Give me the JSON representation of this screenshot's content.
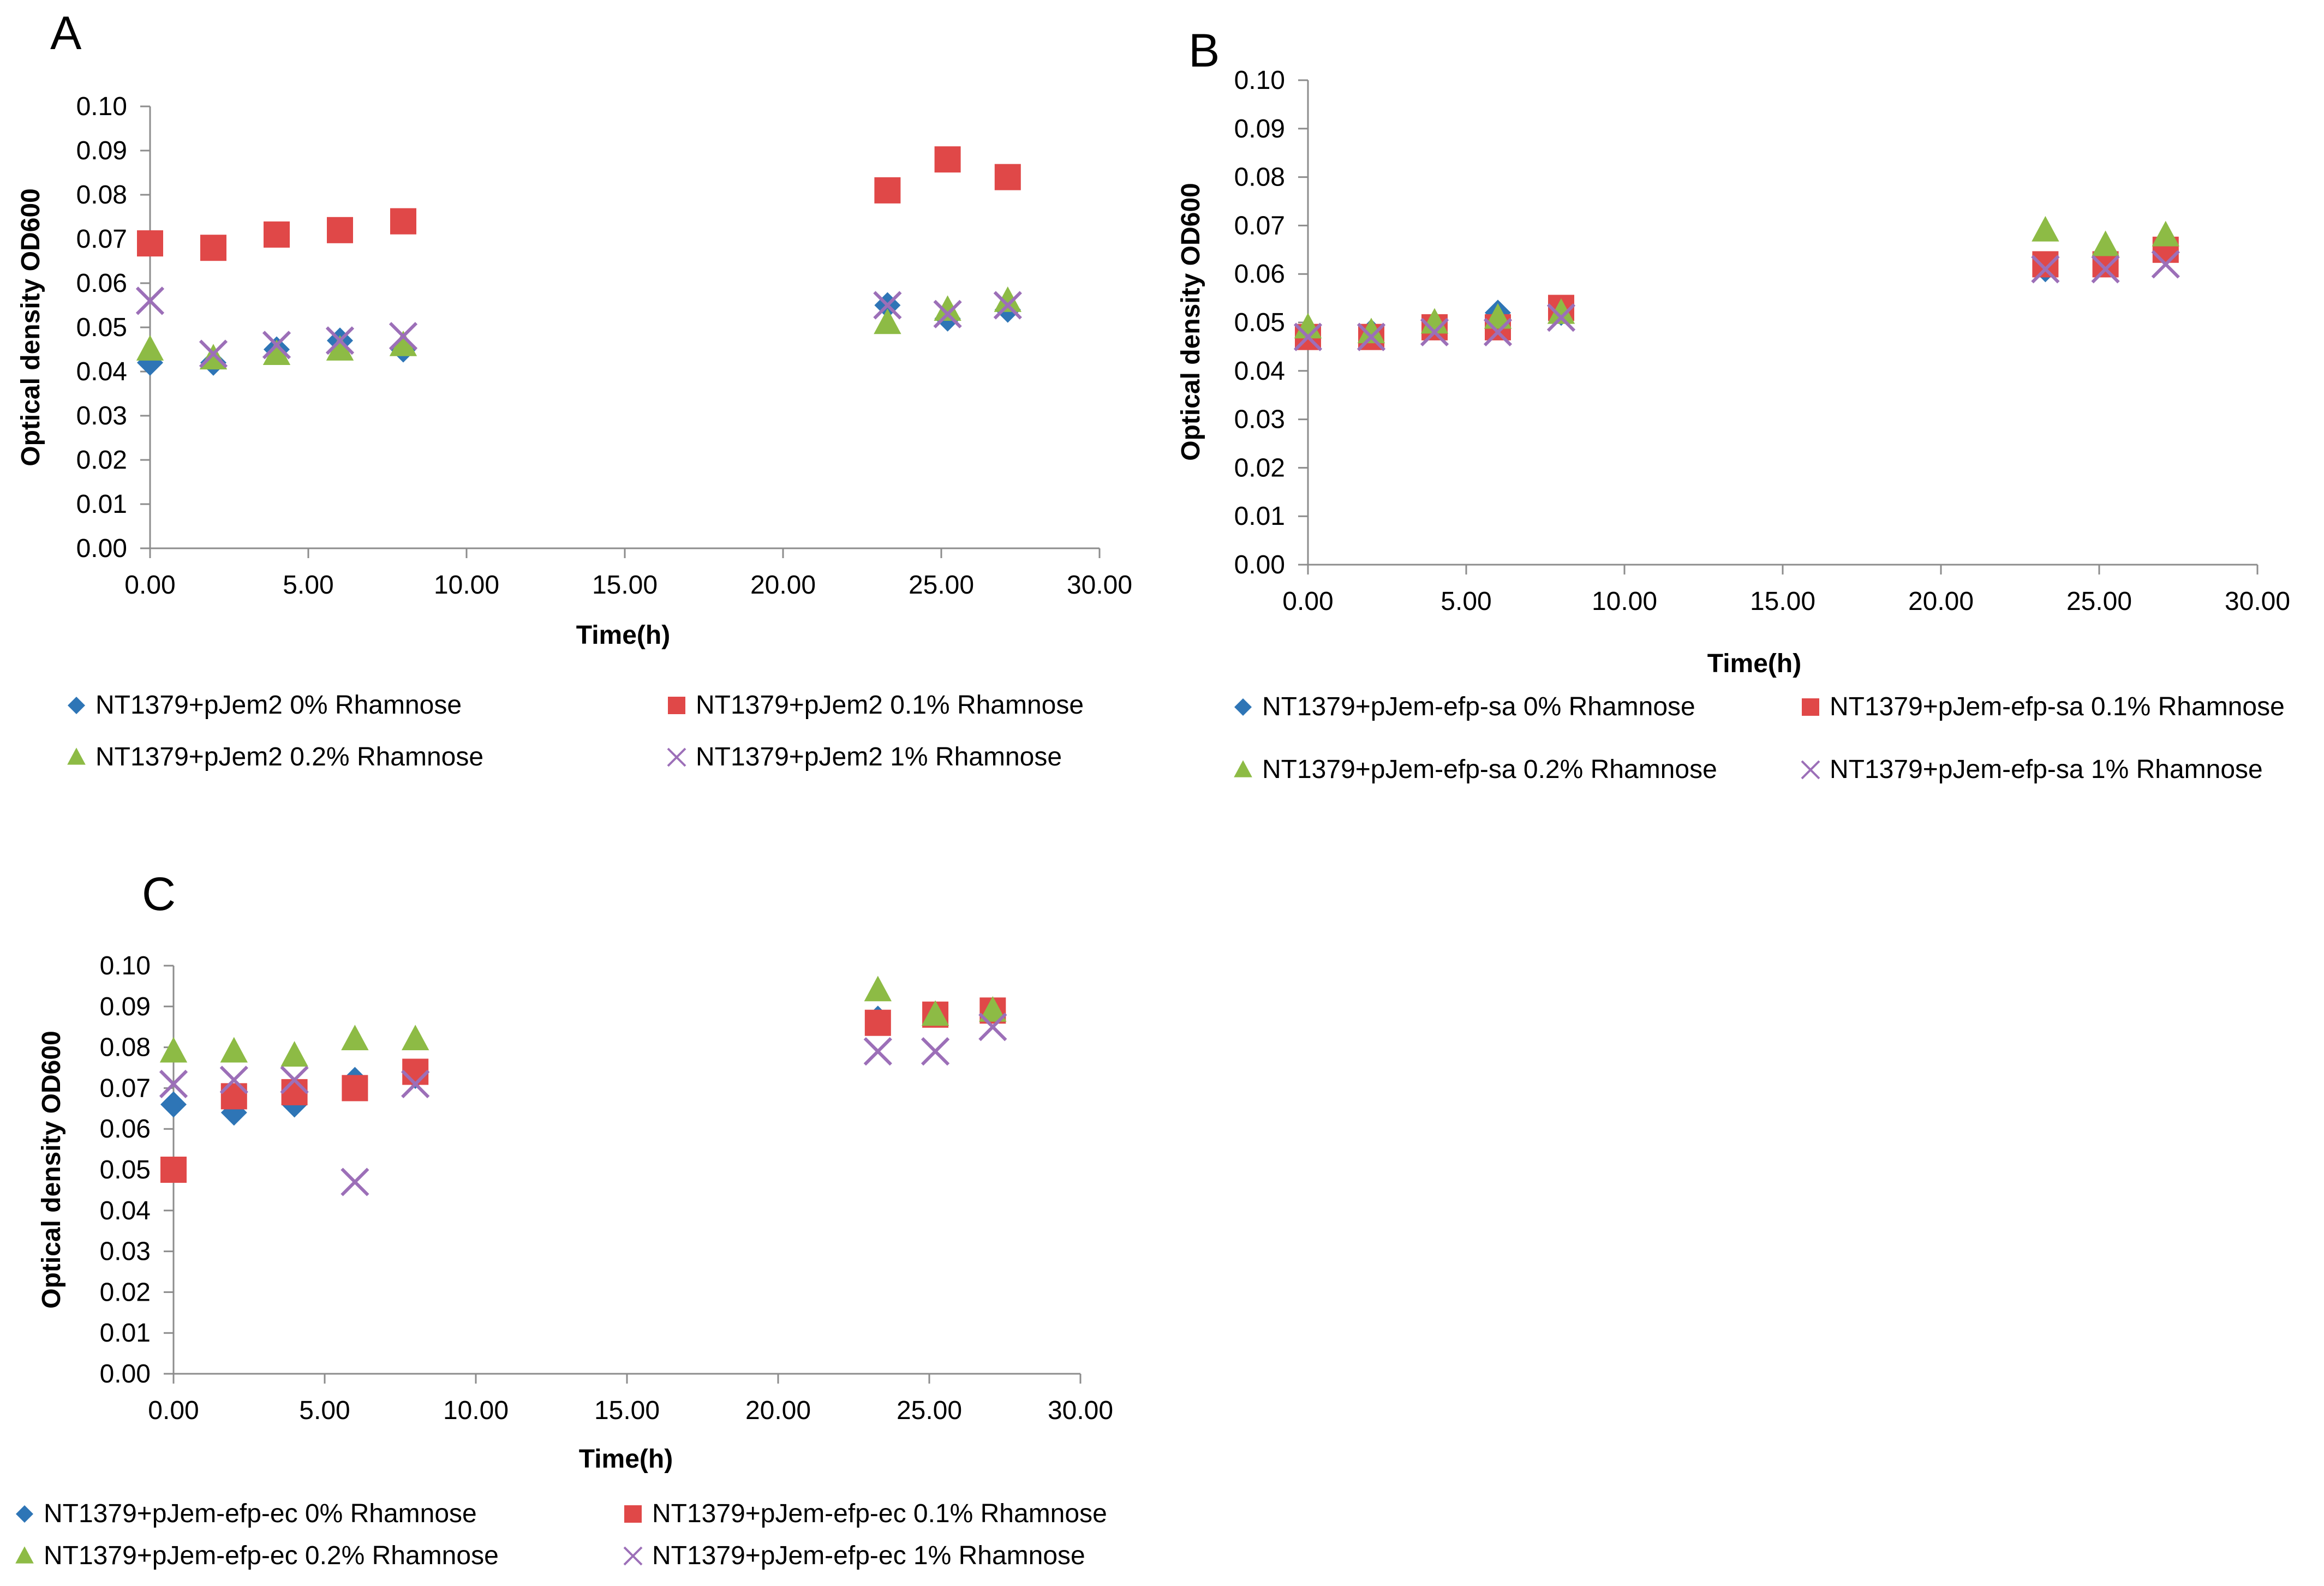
{
  "chart_data": [
    {
      "type": "scatter",
      "panel_label": "A",
      "xlabel": "Time(h)",
      "ylabel": "Optical density OD600",
      "xlim": [
        0,
        30
      ],
      "xstep": 5,
      "ylim": [
        0,
        0.1
      ],
      "ystep": 0.01,
      "x_tick_labels": [
        "0.00",
        "5.00",
        "10.00",
        "15.00",
        "20.00",
        "25.00",
        "30.00"
      ],
      "y_tick_labels": [
        "0.00",
        "0.01",
        "0.02",
        "0.03",
        "0.04",
        "0.05",
        "0.06",
        "0.07",
        "0.08",
        "0.09",
        "0.10"
      ],
      "x": [
        0,
        2,
        4,
        6,
        8,
        23.3,
        25.2,
        27.1
      ],
      "series": [
        {
          "name": "NT1379+pJem2 0% Rhamnose",
          "marker": "diamond",
          "color": "#2E75B6",
          "values": [
            0.042,
            0.042,
            0.045,
            0.047,
            0.045,
            0.055,
            0.052,
            0.054
          ]
        },
        {
          "name": "NT1379+pJem2 0.1% Rhamnose",
          "marker": "square",
          "color": "#E04848",
          "values": [
            0.069,
            0.068,
            0.071,
            0.072,
            0.074,
            0.081,
            0.088,
            0.084
          ]
        },
        {
          "name": "NT1379+pJem2 0.2% Rhamnose",
          "marker": "triangle",
          "color": "#8DBB45",
          "values": [
            0.045,
            0.043,
            0.044,
            0.045,
            0.046,
            0.051,
            0.054,
            0.056
          ]
        },
        {
          "name": "NT1379+pJem2 1% Rhamnose",
          "marker": "x",
          "color": "#9C6FB8",
          "values": [
            0.056,
            0.044,
            0.046,
            0.047,
            0.048,
            0.055,
            0.053,
            0.055
          ]
        }
      ]
    },
    {
      "type": "scatter",
      "panel_label": "B",
      "xlabel": "Time(h)",
      "ylabel": "Optical density OD600",
      "xlim": [
        0,
        30
      ],
      "xstep": 5,
      "ylim": [
        0,
        0.1
      ],
      "ystep": 0.01,
      "x_tick_labels": [
        "0.00",
        "5.00",
        "10.00",
        "15.00",
        "20.00",
        "25.00",
        "30.00"
      ],
      "y_tick_labels": [
        "0.00",
        "0.01",
        "0.02",
        "0.03",
        "0.04",
        "0.05",
        "0.06",
        "0.07",
        "0.08",
        "0.09",
        "0.10"
      ],
      "x": [
        0,
        2,
        4,
        6,
        8,
        23.3,
        25.2,
        27.1
      ],
      "series": [
        {
          "name": "NT1379+pJem-efp-sa 0% Rhamnose",
          "marker": "diamond",
          "color": "#2E75B6",
          "values": [
            0.047,
            0.048,
            0.049,
            0.052,
            0.052,
            0.061,
            0.062,
            0.065
          ]
        },
        {
          "name": "NT1379+pJem-efp-sa 0.1% Rhamnose",
          "marker": "square",
          "color": "#E04848",
          "values": [
            0.047,
            0.047,
            0.049,
            0.049,
            0.053,
            0.062,
            0.062,
            0.065
          ]
        },
        {
          "name": "NT1379+pJem-efp-sa  0.2% Rhamnose",
          "marker": "triangle",
          "color": "#8DBB45",
          "values": [
            0.049,
            0.048,
            0.05,
            0.051,
            0.052,
            0.069,
            0.066,
            0.068
          ]
        },
        {
          "name": "NT1379+pJem-efp-sa 1% Rhamnose",
          "marker": "x",
          "color": "#9C6FB8",
          "values": [
            0.047,
            0.047,
            0.048,
            0.048,
            0.051,
            0.061,
            0.061,
            0.062
          ]
        }
      ]
    },
    {
      "type": "scatter",
      "panel_label": "C",
      "xlabel": "Time(h)",
      "ylabel": "Optical density OD600",
      "xlim": [
        0,
        30
      ],
      "xstep": 5,
      "ylim": [
        0,
        0.1
      ],
      "ystep": 0.01,
      "x_tick_labels": [
        "0.00",
        "5.00",
        "10.00",
        "15.00",
        "20.00",
        "25.00",
        "30.00"
      ],
      "y_tick_labels": [
        "0.00",
        "0.01",
        "0.02",
        "0.03",
        "0.04",
        "0.05",
        "0.06",
        "0.07",
        "0.08",
        "0.09",
        "0.10"
      ],
      "x": [
        0,
        2,
        4,
        6,
        8,
        23.3,
        25.2,
        27.1
      ],
      "series": [
        {
          "name": "NT1379+pJem-efp-ec 0% Rhamnose",
          "marker": "diamond",
          "color": "#2E75B6",
          "values": [
            0.066,
            0.064,
            0.066,
            0.072,
            0.073,
            0.087,
            0.088,
            0.089
          ]
        },
        {
          "name": "NT1379+pJem-efp-ec  0.1% Rhamnose",
          "marker": "square",
          "color": "#E04848",
          "values": [
            0.05,
            0.068,
            0.069,
            0.07,
            0.074,
            0.086,
            0.088,
            0.089
          ]
        },
        {
          "name": "NT1379+pJem-efp-ec  0.2% Rhamnose",
          "marker": "triangle",
          "color": "#8DBB45",
          "values": [
            0.079,
            0.079,
            0.078,
            0.082,
            0.082,
            0.094,
            0.088,
            0.089
          ]
        },
        {
          "name": "NT1379+pJem-efp-ec 1% Rhamnose",
          "marker": "x",
          "color": "#9C6FB8",
          "values": [
            0.071,
            0.072,
            0.072,
            0.047,
            0.071,
            0.079,
            0.079,
            0.085
          ]
        }
      ]
    }
  ]
}
